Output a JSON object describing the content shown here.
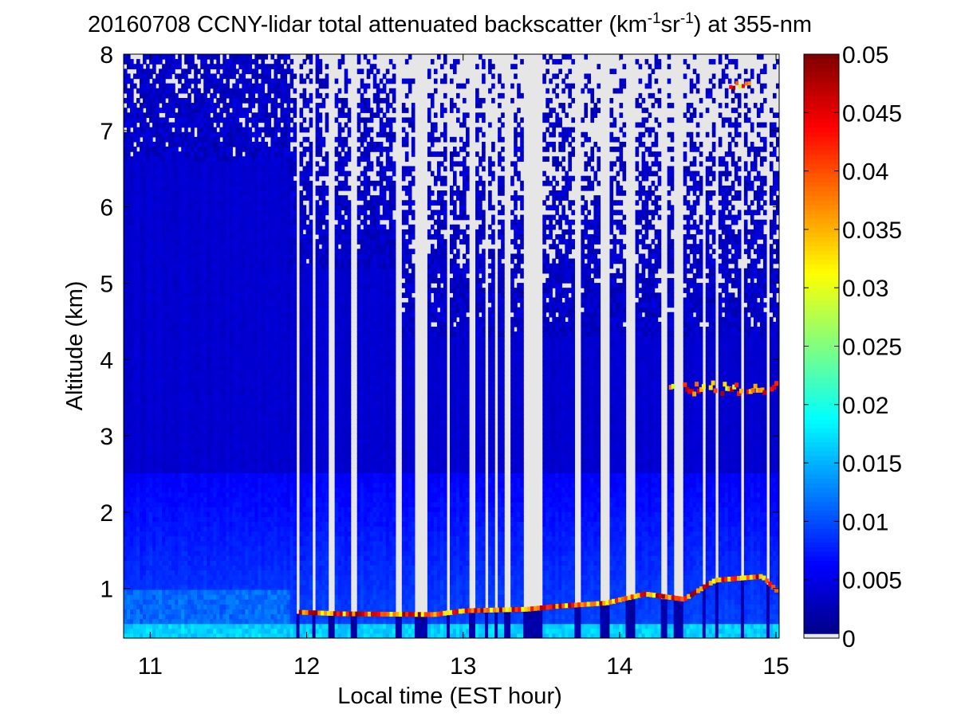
{
  "chart_data": {
    "type": "heatmap",
    "title": {
      "prefix": "20160708 CCNY-lidar total attenuated backscatter (km",
      "sup1": "-1",
      "middle": "sr",
      "sup2": "-1",
      "suffix": ") at 355-nm"
    },
    "xlabel": "Local time (EST hour)",
    "ylabel": "Altitude (km)",
    "xlim": [
      10.83,
      15.02
    ],
    "ylim": [
      0.35,
      8
    ],
    "xticks": [
      11,
      12,
      13,
      14,
      15
    ],
    "yticks": [
      1,
      2,
      3,
      4,
      5,
      6,
      7,
      8
    ],
    "colorbar": {
      "range": [
        0,
        0.05
      ],
      "ticks": [
        0,
        0.005,
        0.01,
        0.015,
        0.02,
        0.025,
        0.03,
        0.035,
        0.04,
        0.045,
        0.05
      ],
      "tick_labels": [
        "0",
        "0.005",
        "0.01",
        "0.015",
        "0.02",
        "0.025",
        "0.03",
        "0.035",
        "0.04",
        "0.045",
        "0.05"
      ],
      "colormap": "jet",
      "zero_color": "#e6e6e6"
    },
    "no_signal_gaps_hours": [
      [
        11.93,
        11.95
      ],
      [
        12.03,
        12.05
      ],
      [
        12.13,
        12.18
      ],
      [
        12.29,
        12.33
      ],
      [
        12.57,
        12.6
      ],
      [
        12.7,
        12.78
      ],
      [
        12.9,
        12.92
      ],
      [
        13.04,
        13.07
      ],
      [
        13.13,
        13.15
      ],
      [
        13.2,
        13.22
      ],
      [
        13.27,
        13.3
      ],
      [
        13.38,
        13.5
      ],
      [
        13.72,
        13.76
      ],
      [
        13.88,
        13.93
      ],
      [
        14.04,
        14.1
      ],
      [
        14.27,
        14.3
      ],
      [
        14.34,
        14.4
      ],
      [
        14.53,
        14.56
      ],
      [
        14.61,
        14.64
      ],
      [
        14.77,
        14.8
      ],
      [
        14.93,
        14.95
      ]
    ],
    "features": {
      "boundary_layer_top_km": [
        {
          "x": 11.95,
          "y": 0.68
        },
        {
          "x": 12.2,
          "y": 0.66
        },
        {
          "x": 12.8,
          "y": 0.65
        },
        {
          "x": 13.0,
          "y": 0.7
        },
        {
          "x": 13.4,
          "y": 0.72
        },
        {
          "x": 13.6,
          "y": 0.76
        },
        {
          "x": 13.9,
          "y": 0.8
        },
        {
          "x": 14.15,
          "y": 0.92
        },
        {
          "x": 14.4,
          "y": 0.85
        },
        {
          "x": 14.6,
          "y": 1.1
        },
        {
          "x": 14.9,
          "y": 1.15
        },
        {
          "x": 15.0,
          "y": 0.95
        }
      ],
      "aerosol_layer": {
        "altitude_km": 3.65,
        "x_range": [
          14.3,
          15.0
        ]
      },
      "high_cloud": {
        "altitude_km": 7.6,
        "x_range": [
          14.7,
          14.83
        ]
      }
    }
  }
}
